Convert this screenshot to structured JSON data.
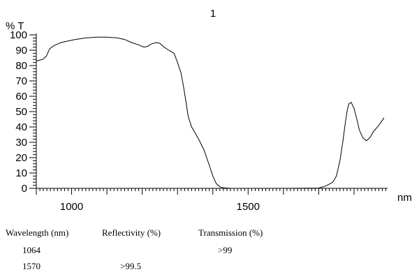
{
  "chart_data": {
    "type": "line",
    "title": "1",
    "ylabel": "% T",
    "xlabel": "nm",
    "xlim": [
      900,
      1895
    ],
    "ylim": [
      0,
      100
    ],
    "x_ticks": [
      1000,
      1500
    ],
    "y_ticks": [
      0,
      10,
      20,
      30,
      40,
      50,
      60,
      70,
      80,
      90,
      100
    ],
    "grid": false,
    "series": [
      {
        "x": [
          900,
          918,
          928,
          938,
          950,
          970,
          990,
          1010,
          1040,
          1070,
          1100,
          1130,
          1150,
          1170,
          1190,
          1205,
          1215,
          1225,
          1240,
          1250,
          1262,
          1275,
          1290,
          1300,
          1310,
          1318,
          1325,
          1330,
          1340,
          1350,
          1360,
          1375,
          1390,
          1400,
          1410,
          1420,
          1430,
          1450,
          1470,
          1500,
          1600,
          1700,
          1720,
          1740,
          1750,
          1760,
          1768,
          1775,
          1780,
          1785,
          1792,
          1800,
          1808,
          1815,
          1825,
          1835,
          1845,
          1855,
          1870,
          1885
        ],
        "y": [
          83,
          84,
          86,
          91,
          93,
          95,
          96,
          97,
          98,
          98.5,
          98.5,
          98,
          97,
          95,
          93.5,
          92,
          92.5,
          94,
          95,
          94.5,
          92,
          90,
          88,
          82,
          75,
          65,
          55,
          47,
          40,
          36,
          32,
          25,
          15,
          8,
          3,
          1,
          0.3,
          0,
          0,
          0,
          0,
          0.2,
          1.5,
          4,
          8,
          18,
          30,
          42,
          50,
          55,
          56,
          52,
          45,
          38,
          33,
          31,
          33,
          37,
          41,
          46
        ]
      }
    ]
  },
  "table": {
    "headers": [
      "Wavelength (nm)",
      "Reflectivity (%)",
      "Transmission (%)"
    ],
    "rows": [
      [
        "1064",
        "",
        ">99"
      ],
      [
        "1570",
        ">99.5",
        ""
      ]
    ]
  }
}
